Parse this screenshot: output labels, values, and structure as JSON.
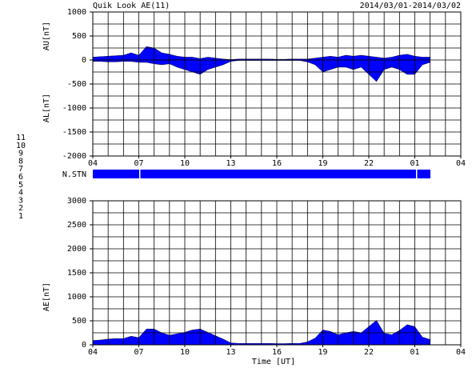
{
  "title": "Quik Look AE(11)",
  "date_range": "2014/03/01-2014/03/02",
  "n_stn_label": "N.STN",
  "stations": [
    {
      "label": "11",
      "color": "#00e0e0"
    },
    {
      "label": "10",
      "color": "#ff00ff"
    },
    {
      "label": "9",
      "color": "#4000ff"
    },
    {
      "label": "8",
      "color": "#f0d000"
    },
    {
      "label": "7",
      "color": "#c8e000"
    },
    {
      "label": "6",
      "color": "#ff0000"
    },
    {
      "label": "5",
      "color": "#d0d0d0"
    },
    {
      "label": "4",
      "color": "#a0a0a0"
    },
    {
      "label": "3",
      "color": "#008080"
    },
    {
      "label": "2",
      "color": "#a000a0"
    },
    {
      "label": "1",
      "color": "#0000ff"
    }
  ],
  "chart_data": [
    {
      "type": "area",
      "ylabels": [
        "AU[nT]",
        "AL[nT]"
      ],
      "x": [
        4,
        4.5,
        5,
        5.5,
        6,
        6.5,
        7,
        7.5,
        8,
        8.5,
        9,
        9.5,
        10,
        10.5,
        11,
        11.5,
        12,
        12.5,
        13,
        13.5,
        14,
        14.5,
        15,
        15.5,
        16,
        16.5,
        17,
        17.5,
        18,
        18.5,
        19,
        19.5,
        20,
        20.5,
        21,
        21.5,
        22,
        22.5,
        23,
        23.5,
        24,
        24.5,
        25,
        25.5,
        26
      ],
      "series": [
        {
          "name": "AU",
          "color": "#0000ff",
          "values": [
            60,
            70,
            80,
            90,
            100,
            150,
            100,
            280,
            250,
            150,
            120,
            80,
            60,
            60,
            30,
            60,
            40,
            20,
            10,
            20,
            20,
            20,
            20,
            20,
            15,
            15,
            20,
            20,
            20,
            40,
            60,
            80,
            60,
            100,
            80,
            100,
            80,
            60,
            40,
            60,
            100,
            120,
            80,
            60,
            60
          ]
        },
        {
          "name": "AL",
          "color": "#0000ff",
          "values": [
            -30,
            -30,
            -40,
            -40,
            -30,
            -30,
            -50,
            -50,
            -80,
            -100,
            -80,
            -150,
            -200,
            -250,
            -300,
            -200,
            -150,
            -100,
            -30,
            -10,
            -10,
            -10,
            -10,
            -10,
            -10,
            -10,
            -10,
            -10,
            -40,
            -100,
            -250,
            -200,
            -150,
            -150,
            -200,
            -150,
            -300,
            -450,
            -200,
            -150,
            -200,
            -300,
            -300,
            -100,
            -50
          ]
        }
      ],
      "xlim": [
        4,
        28
      ],
      "xticks": [
        {
          "value": 4,
          "label": "04"
        },
        {
          "value": 7,
          "label": "07"
        },
        {
          "value": 10,
          "label": "10"
        },
        13,
        16,
        19,
        22,
        {
          "value": 25,
          "label": "01"
        },
        {
          "value": 28,
          "label": "04"
        }
      ],
      "xgrid": [
        4,
        5,
        6,
        7,
        8,
        9,
        10,
        11,
        12,
        13,
        14,
        15,
        16,
        17,
        18,
        19,
        20,
        21,
        22,
        23,
        24,
        25,
        26,
        27,
        28
      ],
      "ylim": [
        -2000,
        1000
      ],
      "yticks": [
        -2000,
        -1500,
        -1000,
        -500,
        0,
        500,
        1000
      ],
      "ygrid": [
        -2000,
        -1750,
        -1500,
        -1250,
        -1000,
        -750,
        -500,
        -250,
        0,
        250,
        500,
        750,
        1000
      ]
    },
    {
      "type": "area",
      "ylabels": [
        "AE[nT]"
      ],
      "xlabel": "Time [UT]",
      "x": [
        4,
        4.5,
        5,
        5.5,
        6,
        6.5,
        7,
        7.5,
        8,
        8.5,
        9,
        9.5,
        10,
        10.5,
        11,
        11.5,
        12,
        12.5,
        13,
        13.5,
        14,
        14.5,
        15,
        15.5,
        16,
        16.5,
        17,
        17.5,
        18,
        18.5,
        19,
        19.5,
        20,
        20.5,
        21,
        21.5,
        22,
        22.5,
        23,
        23.5,
        24,
        24.5,
        25,
        25.5,
        26
      ],
      "series": [
        {
          "name": "AE",
          "color": "#0000ff",
          "values": [
            90,
            100,
            120,
            130,
            130,
            180,
            150,
            330,
            330,
            250,
            200,
            230,
            260,
            310,
            330,
            260,
            190,
            120,
            40,
            30,
            30,
            30,
            30,
            30,
            25,
            25,
            30,
            30,
            60,
            140,
            310,
            280,
            210,
            250,
            280,
            250,
            380,
            510,
            240,
            210,
            300,
            420,
            380,
            160,
            110
          ]
        }
      ],
      "xlim": [
        4,
        28
      ],
      "xticks": [
        {
          "value": 4,
          "label": "04"
        },
        {
          "value": 7,
          "label": "07"
        },
        {
          "value": 10,
          "label": "10"
        },
        13,
        16,
        19,
        22,
        {
          "value": 25,
          "label": "01"
        },
        {
          "value": 28,
          "label": "04"
        }
      ],
      "xgrid": [
        4,
        5,
        6,
        7,
        8,
        9,
        10,
        11,
        12,
        13,
        14,
        15,
        16,
        17,
        18,
        19,
        20,
        21,
        22,
        23,
        24,
        25,
        26,
        27,
        28
      ],
      "ylim": [
        0,
        3000
      ],
      "yticks": [
        0,
        500,
        1000,
        1500,
        2000,
        2500,
        3000
      ],
      "ygrid": [
        0,
        250,
        500,
        750,
        1000,
        1250,
        1500,
        1750,
        2000,
        2250,
        2500,
        2750,
        3000
      ]
    }
  ]
}
